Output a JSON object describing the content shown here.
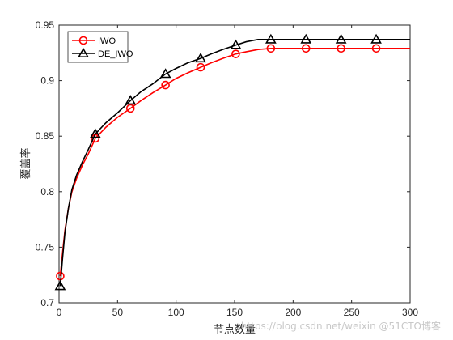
{
  "chart_data": {
    "type": "line",
    "title": "",
    "xlabel": "节点数量",
    "ylabel": "覆盖率",
    "xlim": [
      0,
      300
    ],
    "ylim": [
      0.7,
      0.95
    ],
    "xticks": [
      0,
      50,
      100,
      150,
      200,
      250,
      300
    ],
    "yticks": [
      0.7,
      0.75,
      0.8,
      0.85,
      0.9,
      0.95
    ],
    "xtick_labels": [
      "0",
      "50",
      "100",
      "150",
      "200",
      "250",
      "300"
    ],
    "ytick_labels": [
      "0.7",
      "0.75",
      "0.8",
      "0.85",
      "0.9",
      "0.95"
    ],
    "grid": false,
    "legend_position": "top-left",
    "series": [
      {
        "name": "IWO",
        "color": "#ff0000",
        "marker": "circle",
        "x": [
          1,
          3,
          5,
          8,
          11,
          15,
          20,
          25,
          31,
          40,
          50,
          61,
          70,
          80,
          91,
          100,
          110,
          121,
          130,
          140,
          151,
          160,
          170,
          181,
          190,
          200,
          211,
          220,
          230,
          241,
          250,
          260,
          271,
          280,
          300
        ],
        "y": [
          0.724,
          0.745,
          0.765,
          0.785,
          0.8,
          0.812,
          0.824,
          0.834,
          0.848,
          0.858,
          0.867,
          0.875,
          0.882,
          0.889,
          0.896,
          0.902,
          0.907,
          0.912,
          0.916,
          0.92,
          0.924,
          0.926,
          0.928,
          0.929,
          0.929,
          0.929,
          0.929,
          0.929,
          0.929,
          0.929,
          0.929,
          0.929,
          0.929,
          0.929,
          0.929
        ],
        "marker_x": [
          1,
          31,
          61,
          91,
          121,
          151,
          181,
          211,
          241,
          271
        ],
        "marker_y": [
          0.724,
          0.848,
          0.875,
          0.896,
          0.912,
          0.924,
          0.929,
          0.929,
          0.929,
          0.929
        ]
      },
      {
        "name": "DE_IWO",
        "color": "#000000",
        "marker": "triangle",
        "x": [
          1,
          3,
          5,
          8,
          11,
          15,
          20,
          25,
          31,
          40,
          50,
          61,
          70,
          80,
          91,
          100,
          110,
          121,
          130,
          140,
          151,
          160,
          170,
          181,
          190,
          200,
          211,
          220,
          230,
          241,
          250,
          260,
          271,
          280,
          300
        ],
        "y": [
          0.715,
          0.74,
          0.763,
          0.785,
          0.802,
          0.815,
          0.827,
          0.838,
          0.852,
          0.862,
          0.871,
          0.882,
          0.89,
          0.897,
          0.906,
          0.911,
          0.916,
          0.92,
          0.924,
          0.928,
          0.932,
          0.935,
          0.937,
          0.937,
          0.937,
          0.937,
          0.937,
          0.937,
          0.937,
          0.937,
          0.937,
          0.937,
          0.937,
          0.937,
          0.937
        ],
        "marker_x": [
          1,
          31,
          61,
          91,
          121,
          151,
          181,
          211,
          241,
          271
        ],
        "marker_y": [
          0.715,
          0.852,
          0.882,
          0.906,
          0.92,
          0.932,
          0.937,
          0.937,
          0.937,
          0.937
        ]
      }
    ]
  },
  "watermark": "https://blog.csdn.net/weixin @51CTO博客"
}
